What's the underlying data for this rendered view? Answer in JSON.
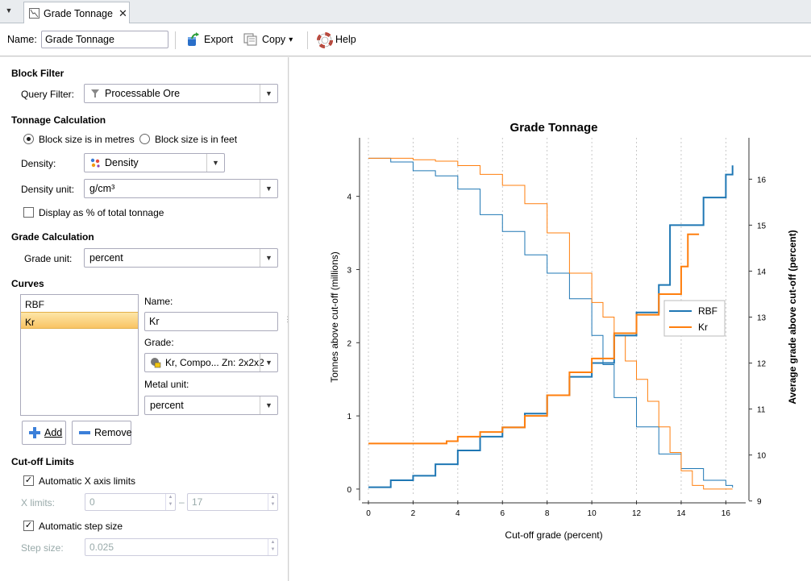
{
  "tab": {
    "title": "Grade Tonnage",
    "close": "✕",
    "menu": "▼"
  },
  "toolbar": {
    "name_label": "Name:",
    "name_value": "Grade Tonnage",
    "export": "Export",
    "copy": "Copy",
    "copy_arrow": "▾",
    "help": "Help"
  },
  "block_filter": {
    "header": "Block Filter",
    "query_label": "Query Filter:",
    "query_value": "Processable Ore"
  },
  "tonnage": {
    "header": "Tonnage Calculation",
    "radio_metres": "Block size is in metres",
    "radio_feet": "Block size is in feet",
    "density_label": "Density:",
    "density_value": "Density",
    "density_unit_label": "Density unit:",
    "density_unit_value": "g/cm³",
    "pct_label": "Display as % of total tonnage"
  },
  "grade": {
    "header": "Grade Calculation",
    "unit_label": "Grade unit:",
    "unit_value": "percent"
  },
  "curves": {
    "header": "Curves",
    "items": [
      "RBF",
      "Kr"
    ],
    "selected": "Kr",
    "name_label": "Name:",
    "name_value": "Kr",
    "grade_label": "Grade:",
    "grade_value": "Kr, Compo... Zn: 2x2x2",
    "metal_label": "Metal unit:",
    "metal_value": "percent",
    "add": "Add",
    "remove": "Remove"
  },
  "cutoff": {
    "header": "Cut-off Limits",
    "auto_x": "Automatic X axis limits",
    "xlim_label": "X limits:",
    "xmin": "0",
    "xsep": "–",
    "xmax": "17",
    "auto_step": "Automatic step size",
    "step_label": "Step size:",
    "step_value": "0.025"
  },
  "chart_data": {
    "type": "line",
    "title": "Grade Tonnage",
    "xlabel": "Cut-off grade (percent)",
    "ylabel": "Tonnes above cut-off (millions)",
    "y2label": "Average grade above cut-off (percent)",
    "xticks": [
      "0",
      "2",
      "4",
      "6",
      "8",
      "10",
      "12",
      "14",
      "16"
    ],
    "yticks": [
      "0",
      "1",
      "2",
      "3",
      "4"
    ],
    "y2ticks": [
      "9",
      "10",
      "11",
      "12",
      "13",
      "14",
      "15",
      "16"
    ],
    "xlim": [
      0,
      16.6
    ],
    "ylim": [
      -0.1,
      4.8
    ],
    "y2lim": [
      9.1,
      16.9
    ],
    "legend_position": "right",
    "colors": {
      "RBF": "#1f77b4",
      "Kr": "#ff7f0e"
    },
    "series": [
      {
        "name": "RBF",
        "axis": "left",
        "x": [
          0,
          1,
          2,
          3,
          4,
          5,
          6,
          7,
          8,
          9,
          10,
          10.5,
          11,
          12,
          13,
          14,
          15,
          16,
          16.3
        ],
        "y": [
          4.52,
          4.47,
          4.35,
          4.28,
          4.1,
          3.75,
          3.52,
          3.2,
          2.95,
          2.6,
          2.1,
          1.7,
          1.25,
          0.85,
          0.48,
          0.28,
          0.12,
          0.05,
          0.02
        ]
      },
      {
        "name": "Kr",
        "axis": "left",
        "x": [
          0,
          1,
          2,
          3,
          4,
          5,
          6,
          7,
          8,
          9,
          10,
          10.5,
          11,
          11.5,
          12,
          12.5,
          13,
          13.5,
          14,
          14.5,
          15,
          16,
          16.3
        ],
        "y": [
          4.52,
          4.52,
          4.5,
          4.48,
          4.42,
          4.3,
          4.15,
          3.9,
          3.5,
          2.95,
          2.55,
          2.35,
          2.1,
          1.75,
          1.5,
          1.2,
          0.85,
          0.5,
          0.25,
          0.05,
          0,
          0,
          0
        ]
      },
      {
        "name": "RBF",
        "axis": "right",
        "x": [
          0,
          1,
          2,
          3,
          4,
          5,
          6,
          7,
          8,
          9,
          10,
          11,
          12,
          13,
          13.5,
          14,
          15,
          16,
          16.3
        ],
        "y": [
          9.3,
          9.45,
          9.55,
          9.8,
          10.1,
          10.4,
          10.6,
          10.9,
          11.3,
          11.7,
          12.0,
          12.6,
          13.1,
          13.7,
          15.0,
          15.0,
          15.6,
          16.1,
          16.3
        ]
      },
      {
        "name": "Kr",
        "axis": "right",
        "x": [
          0,
          1,
          2,
          3,
          3.5,
          4,
          5,
          6,
          7,
          8,
          9,
          10,
          11,
          12,
          13,
          14,
          14.3,
          14.8
        ],
        "y": [
          10.25,
          10.25,
          10.25,
          10.25,
          10.3,
          10.4,
          10.5,
          10.6,
          10.85,
          11.3,
          11.8,
          12.1,
          12.65,
          13.05,
          13.5,
          14.1,
          14.8,
          14.8
        ]
      }
    ]
  }
}
